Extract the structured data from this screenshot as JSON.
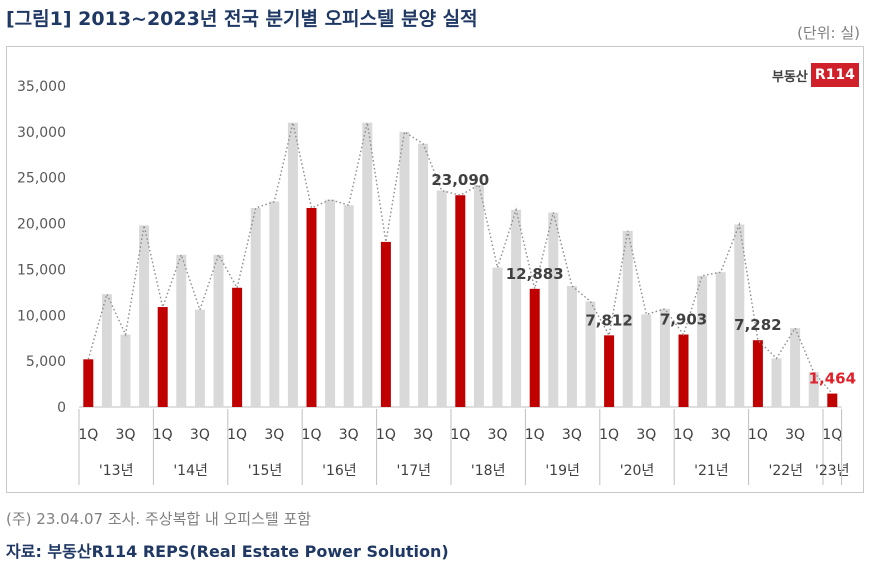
{
  "title": "[그림1] 2013~2023년 전국 분기별 오피스텔 분양 실적",
  "unit": "(단위: 실)",
  "logo": {
    "text": "부동산",
    "box": "R114"
  },
  "note": "(주) 23.04.07 조사. 주상복합 내 오피스텔 포함",
  "source": "자료: 부동산R114 REPS(Real Estate Power Solution)",
  "chart_data": {
    "type": "bar",
    "ylim": [
      0,
      35000
    ],
    "yticks": [
      "0",
      "5,000",
      "10,000",
      "15,000",
      "20,000",
      "25,000",
      "30,000",
      "35,000"
    ],
    "ytick_values": [
      0,
      5000,
      10000,
      15000,
      20000,
      25000,
      30000,
      35000
    ],
    "quarter_labels": [
      "1Q",
      "",
      "3Q",
      ""
    ],
    "years": [
      "'13년",
      "'14년",
      "'15년",
      "'16년",
      "'17년",
      "'18년",
      "'19년",
      "'20년",
      "'21년",
      "'22년",
      "'23년"
    ],
    "values": [
      5200,
      12300,
      7900,
      19800,
      10900,
      16600,
      10600,
      16600,
      13000,
      21700,
      22400,
      31000,
      21700,
      22600,
      22000,
      31000,
      18000,
      30000,
      28700,
      23600,
      23090,
      24200,
      15200,
      21500,
      12883,
      21200,
      13200,
      11500,
      7812,
      19200,
      10100,
      10700,
      7903,
      14300,
      14700,
      19900,
      7282,
      5300,
      8600,
      3800,
      1464
    ],
    "highlight_color": "#c00000",
    "base_color": "#d9d9d9",
    "trend_line": "dotted",
    "data_labels": [
      {
        "index": 20,
        "text": "23,090"
      },
      {
        "index": 24,
        "text": "12,883"
      },
      {
        "index": 28,
        "text": "7,812"
      },
      {
        "index": 32,
        "text": "7,903"
      },
      {
        "index": 36,
        "text": "7,282"
      },
      {
        "index": 40,
        "text": "1,464",
        "highlight": true
      }
    ]
  }
}
